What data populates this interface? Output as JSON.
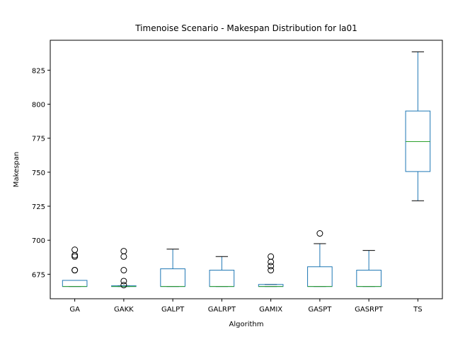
{
  "chart_data": {
    "type": "box",
    "title": "Timenoise Scenario - Makespan Distribution for la01",
    "xlabel": "Algorithm",
    "ylabel": "Makespan",
    "categories": [
      "GA",
      "GAKK",
      "GALPT",
      "GALRPT",
      "GAMIX",
      "GASPT",
      "GASRPT",
      "TS"
    ],
    "ylim": [
      657,
      847
    ],
    "yticks": [
      675,
      700,
      725,
      750,
      775,
      800,
      825
    ],
    "grid": false,
    "colors": {
      "box": "#1f77b4",
      "median": "#2ca02c",
      "whisker": "#1f77b4",
      "cap": "#000000",
      "flier": "#000000"
    },
    "boxes": [
      {
        "label": "GA",
        "whislo": 666,
        "q1": 666,
        "med": 666,
        "q3": 670.5,
        "whishi": 670.5,
        "fliers": [
          678,
          678,
          688,
          689,
          693
        ]
      },
      {
        "label": "GAKK",
        "whislo": 666,
        "q1": 666,
        "med": 666,
        "q3": 666.5,
        "whishi": 666.5,
        "fliers": [
          667,
          670,
          678,
          688,
          692
        ]
      },
      {
        "label": "GALPT",
        "whislo": 666,
        "q1": 666,
        "med": 666,
        "q3": 679,
        "whishi": 693.5,
        "fliers": []
      },
      {
        "label": "GALRPT",
        "whislo": 666,
        "q1": 666,
        "med": 666,
        "q3": 678,
        "whishi": 688,
        "fliers": []
      },
      {
        "label": "GAMIX",
        "whislo": 666,
        "q1": 666,
        "med": 666,
        "q3": 667.5,
        "whishi": 667.5,
        "fliers": [
          678,
          681,
          684,
          688
        ]
      },
      {
        "label": "GASPT",
        "whislo": 666,
        "q1": 666,
        "med": 666,
        "q3": 680.5,
        "whishi": 697.5,
        "fliers": [
          705
        ]
      },
      {
        "label": "GASRPT",
        "whislo": 666,
        "q1": 666,
        "med": 666,
        "q3": 678,
        "whishi": 692.5,
        "fliers": []
      },
      {
        "label": "TS",
        "whislo": 729,
        "q1": 750.5,
        "med": 772.5,
        "q3": 795,
        "whishi": 838.5,
        "fliers": []
      }
    ]
  }
}
